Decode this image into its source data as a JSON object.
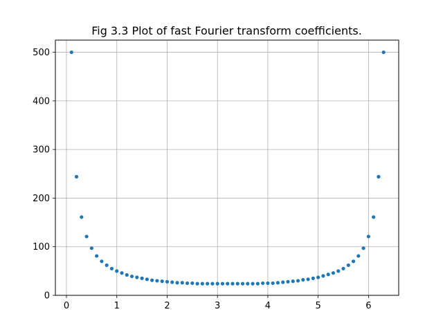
{
  "chart_data": {
    "type": "scatter",
    "title": "Fig 3.3 Plot of fast Fourier transform coefficients.",
    "xlabel": "",
    "ylabel": "",
    "xlim": [
      -0.22,
      6.6
    ],
    "ylim": [
      0,
      525
    ],
    "xticks": [
      0,
      1,
      2,
      3,
      4,
      5,
      6
    ],
    "yticks": [
      0,
      100,
      200,
      300,
      400,
      500
    ],
    "grid": true,
    "legend": "none",
    "marker_color": "#1f77b4",
    "series": [
      {
        "x": [
          0.1,
          0.2,
          0.3,
          0.4,
          0.5,
          0.6,
          0.7,
          0.8,
          0.9,
          1.0,
          1.1,
          1.2,
          1.3,
          1.4,
          1.5,
          1.6,
          1.7,
          1.8,
          1.9,
          2.0,
          2.1,
          2.2,
          2.3,
          2.4,
          2.5,
          2.6,
          2.7,
          2.8,
          2.9,
          3.0,
          3.1,
          3.2,
          3.3,
          3.4,
          3.5,
          3.6,
          3.7,
          3.8,
          3.9,
          4.0,
          4.1,
          4.2,
          4.3,
          4.4,
          4.5,
          4.6,
          4.7,
          4.8,
          4.9,
          5.0,
          5.1,
          5.2,
          5.3,
          5.4,
          5.5,
          5.6,
          5.7,
          5.8,
          5.9,
          6.0,
          6.1,
          6.2,
          6.3
        ],
        "y": [
          500,
          244,
          161,
          121,
          97,
          81,
          70,
          62,
          55,
          50,
          46,
          42,
          39,
          37,
          35,
          33,
          31,
          30,
          29,
          28,
          27,
          26,
          26,
          25,
          25,
          24,
          24,
          24,
          24,
          24,
          24,
          24,
          24,
          24,
          24,
          24,
          24,
          24,
          25,
          25,
          25,
          26,
          27,
          28,
          29,
          30,
          32,
          33,
          35,
          37,
          40,
          43,
          46,
          50,
          55,
          62,
          70,
          81,
          97,
          121,
          161,
          244,
          500
        ]
      }
    ]
  }
}
